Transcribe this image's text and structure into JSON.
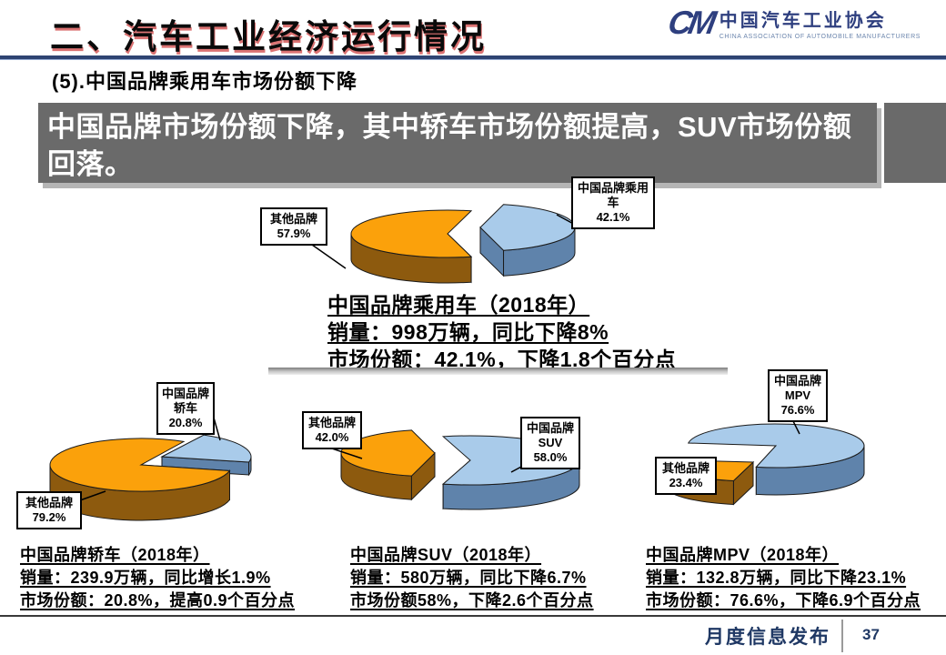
{
  "header": {
    "title": "二、汽车工业经济运行情况",
    "logo_mark": "CM",
    "logo_cn": "中国汽车工业协会",
    "logo_en": "CHINA ASSOCIATION OF AUTOMOBILE MANUFACTURERS"
  },
  "subtitle": "(5).中国品牌乘用车市场份额下降",
  "banner_text": "中国品牌市场份额下降，其中轿车市场份额提高，SUV市场份额回落。",
  "colors": {
    "china_slice": "#a9cbea",
    "china_side": "#5f83ab",
    "other_slice": "#fba10b",
    "other_side": "#8d5a0e",
    "accent_navy": "#2e4372",
    "banner_bg": "#6a6a6a",
    "footer_text": "#1f3864"
  },
  "chart_data": [
    {
      "id": "passenger",
      "type": "pie",
      "title": "中国品牌乘用车（2018年）",
      "slices": [
        {
          "label": "中国品牌乘用车",
          "pct_label": "42.1%",
          "value": 42.1,
          "color_key": "china"
        },
        {
          "label": "其他品牌",
          "pct_label": "57.9%",
          "value": 57.9,
          "color_key": "other"
        }
      ],
      "stats": [
        "销量：998万辆，同比下降8%",
        "市场份额：42.1%，下降1.8个百分点"
      ]
    },
    {
      "id": "sedan",
      "type": "pie",
      "title": "中国品牌轿车（2018年）",
      "slices": [
        {
          "label": "中国品牌轿车",
          "pct_label": "20.8%",
          "value": 20.8,
          "color_key": "china"
        },
        {
          "label": "其他品牌",
          "pct_label": "79.2%",
          "value": 79.2,
          "color_key": "other"
        }
      ],
      "stats": [
        "销量：239.9万辆，同比增长1.9%",
        "市场份额：20.8%，提高0.9个百分点"
      ]
    },
    {
      "id": "suv",
      "type": "pie",
      "title": "中国品牌SUV（2018年）",
      "slices": [
        {
          "label": "中国品牌SUV",
          "pct_label": "58.0%",
          "value": 58.0,
          "color_key": "china"
        },
        {
          "label": "其他品牌",
          "pct_label": "42.0%",
          "value": 42.0,
          "color_key": "other"
        }
      ],
      "stats": [
        "销量：580万辆，同比下降6.7%",
        "市场份额58%，下降2.6个百分点"
      ]
    },
    {
      "id": "mpv",
      "type": "pie",
      "title": "中国品牌MPV（2018年）",
      "slices": [
        {
          "label": "中国品牌MPV",
          "pct_label": "76.6%",
          "value": 76.6,
          "color_key": "china"
        },
        {
          "label": "其他品牌",
          "pct_label": "23.4%",
          "value": 23.4,
          "color_key": "other"
        }
      ],
      "stats": [
        "销量：132.8万辆，同比下降23.1%",
        "市场份额：76.6%，下降6.9个百分点"
      ]
    }
  ],
  "footer": {
    "label": "月度信息发布",
    "page": "37"
  }
}
